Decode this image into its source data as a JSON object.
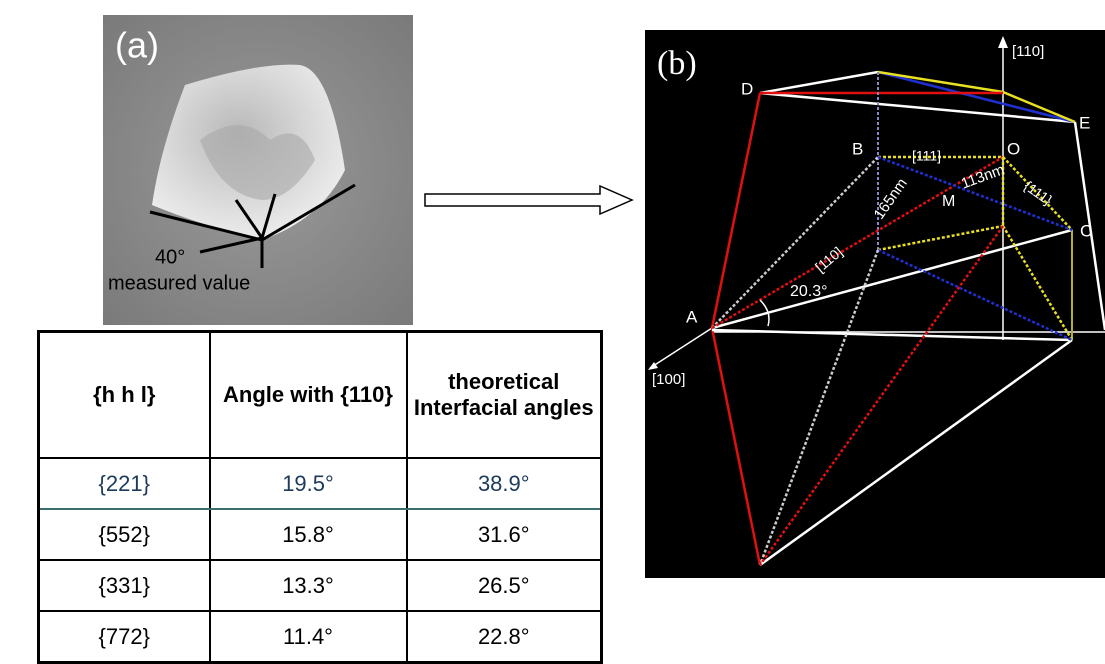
{
  "panel_a": {
    "label": "(a)",
    "angle_label": "40°",
    "caption": "measured value"
  },
  "table": {
    "headers": [
      "{h h l}",
      "Angle with {110}",
      "theoretical Interfacial angles"
    ],
    "rows": [
      [
        "{221}",
        "19.5°",
        "38.9°"
      ],
      [
        "{552}",
        "15.8°",
        "31.6°"
      ],
      [
        "{331}",
        "13.3°",
        "26.5°"
      ],
      [
        "{772}",
        "11.4°",
        "22.8°"
      ]
    ]
  },
  "panel_b": {
    "label": "(b)",
    "labels": [
      "[110]",
      "D",
      "E",
      "B",
      "O",
      "[111]",
      "{111}",
      "113nm",
      "M",
      "165nm",
      "C",
      "[110]",
      "20.3°",
      "A",
      "[100]"
    ]
  }
}
